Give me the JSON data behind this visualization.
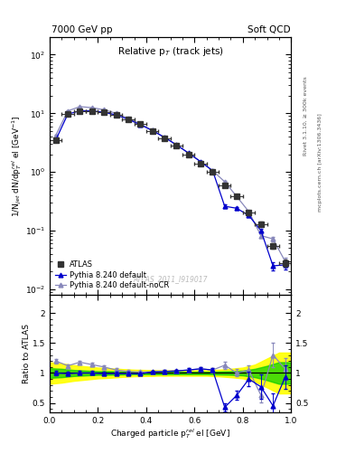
{
  "title_left": "7000 GeV pp",
  "title_right": "Soft QCD",
  "plot_title": "Relative p$_{T}$ (track jets)",
  "xlabel": "Charged particle p$_{T}^{rel}$ el [GeV]",
  "ylabel_main": "1/N$_{jet}$ dN/dp$_{T}^{rel}$ el [GeV$^{-1}$]",
  "ylabel_ratio": "Ratio to ATLAS",
  "right_label_top": "Rivet 3.1.10, ≥ 300k events",
  "right_label_bot": "mcplots.cern.ch [arXiv:1306.3436]",
  "watermark": "ATLAS_2011_I919017",
  "x_atlas": [
    0.025,
    0.075,
    0.125,
    0.175,
    0.225,
    0.275,
    0.325,
    0.375,
    0.425,
    0.475,
    0.525,
    0.575,
    0.625,
    0.675,
    0.725,
    0.775,
    0.825,
    0.875,
    0.925,
    0.975
  ],
  "y_atlas": [
    3.5,
    9.8,
    11.0,
    11.0,
    10.5,
    9.5,
    8.0,
    6.5,
    5.0,
    3.8,
    2.8,
    2.0,
    1.4,
    1.0,
    0.6,
    0.38,
    0.2,
    0.13,
    0.055,
    0.028
  ],
  "yerr_atlas": [
    0.25,
    0.35,
    0.35,
    0.35,
    0.35,
    0.35,
    0.3,
    0.25,
    0.2,
    0.15,
    0.12,
    0.1,
    0.07,
    0.05,
    0.04,
    0.025,
    0.015,
    0.012,
    0.006,
    0.004
  ],
  "xerr_atlas": [
    0.025,
    0.025,
    0.025,
    0.025,
    0.025,
    0.025,
    0.025,
    0.025,
    0.025,
    0.025,
    0.025,
    0.025,
    0.025,
    0.025,
    0.025,
    0.025,
    0.025,
    0.025,
    0.025,
    0.025
  ],
  "x_py8": [
    0.025,
    0.075,
    0.125,
    0.175,
    0.225,
    0.275,
    0.325,
    0.375,
    0.425,
    0.475,
    0.525,
    0.575,
    0.625,
    0.675,
    0.725,
    0.775,
    0.825,
    0.875,
    0.925,
    0.975
  ],
  "y_py8": [
    3.5,
    9.7,
    11.0,
    11.0,
    10.4,
    9.4,
    7.9,
    6.4,
    5.1,
    3.9,
    2.9,
    2.1,
    1.5,
    1.05,
    0.26,
    0.24,
    0.18,
    0.1,
    0.025,
    0.026
  ],
  "yerr_py8": [
    0.08,
    0.1,
    0.1,
    0.1,
    0.1,
    0.1,
    0.08,
    0.07,
    0.06,
    0.05,
    0.04,
    0.04,
    0.03,
    0.025,
    0.015,
    0.012,
    0.01,
    0.008,
    0.004,
    0.004
  ],
  "x_py8nocr": [
    0.025,
    0.075,
    0.125,
    0.175,
    0.225,
    0.275,
    0.325,
    0.375,
    0.425,
    0.475,
    0.525,
    0.575,
    0.625,
    0.675,
    0.725,
    0.775,
    0.825,
    0.875,
    0.925,
    0.975
  ],
  "y_py8nocr": [
    4.2,
    11.0,
    13.0,
    12.5,
    11.5,
    10.0,
    8.2,
    6.6,
    5.1,
    3.9,
    2.9,
    2.1,
    1.5,
    1.05,
    0.68,
    0.38,
    0.21,
    0.082,
    0.072,
    0.03
  ],
  "yerr_py8nocr": [
    0.08,
    0.1,
    0.1,
    0.1,
    0.1,
    0.1,
    0.08,
    0.07,
    0.06,
    0.05,
    0.04,
    0.04,
    0.03,
    0.025,
    0.02,
    0.015,
    0.01,
    0.006,
    0.006,
    0.004
  ],
  "ratio_py8": [
    1.0,
    0.99,
    1.0,
    1.0,
    0.99,
    0.99,
    0.99,
    0.985,
    1.02,
    1.025,
    1.035,
    1.05,
    1.07,
    1.05,
    0.43,
    0.63,
    0.9,
    0.77,
    0.455,
    0.93
  ],
  "ratio_py8_err": [
    0.04,
    0.03,
    0.03,
    0.03,
    0.03,
    0.03,
    0.03,
    0.025,
    0.02,
    0.02,
    0.02,
    0.025,
    0.03,
    0.03,
    0.07,
    0.07,
    0.12,
    0.2,
    0.2,
    0.2
  ],
  "ratio_nocr": [
    1.2,
    1.12,
    1.18,
    1.14,
    1.1,
    1.05,
    1.025,
    1.015,
    1.02,
    1.025,
    1.035,
    1.05,
    1.07,
    1.05,
    1.13,
    1.0,
    1.05,
    0.63,
    1.3,
    1.07
  ],
  "ratio_nocr_err": [
    0.04,
    0.03,
    0.03,
    0.03,
    0.03,
    0.03,
    0.03,
    0.025,
    0.02,
    0.02,
    0.02,
    0.025,
    0.03,
    0.03,
    0.06,
    0.06,
    0.08,
    0.12,
    0.2,
    0.18
  ],
  "band_x": [
    0.0,
    0.05,
    0.1,
    0.15,
    0.2,
    0.25,
    0.3,
    0.35,
    0.4,
    0.45,
    0.5,
    0.55,
    0.6,
    0.65,
    0.7,
    0.75,
    0.8,
    0.85,
    0.9,
    0.95,
    1.0
  ],
  "band_green_lo": [
    0.92,
    0.93,
    0.95,
    0.96,
    0.97,
    0.97,
    0.975,
    0.98,
    0.98,
    0.98,
    0.98,
    0.98,
    0.98,
    0.98,
    0.975,
    0.97,
    0.96,
    0.93,
    0.88,
    0.82,
    0.82
  ],
  "band_green_hi": [
    1.08,
    1.07,
    1.05,
    1.04,
    1.03,
    1.03,
    1.025,
    1.02,
    1.02,
    1.02,
    1.02,
    1.02,
    1.02,
    1.02,
    1.025,
    1.03,
    1.04,
    1.07,
    1.12,
    1.18,
    1.18
  ],
  "band_yellow_lo": [
    0.82,
    0.84,
    0.87,
    0.89,
    0.91,
    0.92,
    0.935,
    0.945,
    0.95,
    0.955,
    0.955,
    0.955,
    0.955,
    0.955,
    0.945,
    0.93,
    0.91,
    0.86,
    0.76,
    0.66,
    0.66
  ],
  "band_yellow_hi": [
    1.18,
    1.16,
    1.13,
    1.11,
    1.09,
    1.08,
    1.065,
    1.055,
    1.05,
    1.045,
    1.045,
    1.045,
    1.045,
    1.045,
    1.055,
    1.07,
    1.09,
    1.14,
    1.24,
    1.34,
    1.34
  ],
  "color_atlas": "#333333",
  "color_py8": "#0000cc",
  "color_py8nocr": "#8888bb",
  "color_green": "#00cc00",
  "color_yellow": "#ffff00",
  "xlim": [
    0.0,
    1.0
  ],
  "ylim_main": [
    0.008,
    200
  ],
  "ylim_ratio": [
    0.35,
    2.3
  ]
}
